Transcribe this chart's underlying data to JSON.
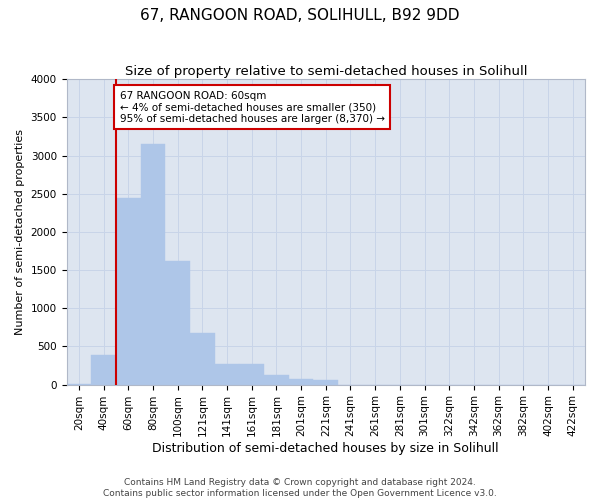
{
  "title": "67, RANGOON ROAD, SOLIHULL, B92 9DD",
  "subtitle": "Size of property relative to semi-detached houses in Solihull",
  "xlabel": "Distribution of semi-detached houses by size in Solihull",
  "ylabel": "Number of semi-detached properties",
  "footnote": "Contains HM Land Registry data © Crown copyright and database right 2024.\nContains public sector information licensed under the Open Government Licence v3.0.",
  "categories": [
    "20sqm",
    "40sqm",
    "60sqm",
    "80sqm",
    "100sqm",
    "121sqm",
    "141sqm",
    "161sqm",
    "181sqm",
    "201sqm",
    "221sqm",
    "241sqm",
    "261sqm",
    "281sqm",
    "301sqm",
    "322sqm",
    "342sqm",
    "362sqm",
    "382sqm",
    "402sqm",
    "422sqm"
  ],
  "values": [
    5,
    390,
    2450,
    3150,
    1620,
    680,
    270,
    270,
    120,
    70,
    60,
    0,
    0,
    0,
    0,
    0,
    0,
    0,
    0,
    0,
    0
  ],
  "bar_color": "#aec6e8",
  "bar_edgecolor": "#aec6e8",
  "highlight_line_color": "#cc0000",
  "annotation_text": "67 RANGOON ROAD: 60sqm\n← 4% of semi-detached houses are smaller (350)\n95% of semi-detached houses are larger (8,370) →",
  "annotation_box_color": "#cc0000",
  "ylim": [
    0,
    4000
  ],
  "yticks": [
    0,
    500,
    1000,
    1500,
    2000,
    2500,
    3000,
    3500,
    4000
  ],
  "title_fontsize": 11,
  "subtitle_fontsize": 9.5,
  "xlabel_fontsize": 9,
  "ylabel_fontsize": 8,
  "tick_fontsize": 7.5,
  "annotation_fontsize": 7.5,
  "background_color": "#ffffff",
  "grid_color": "#c8d4e8",
  "axes_facecolor": "#dde5f0"
}
